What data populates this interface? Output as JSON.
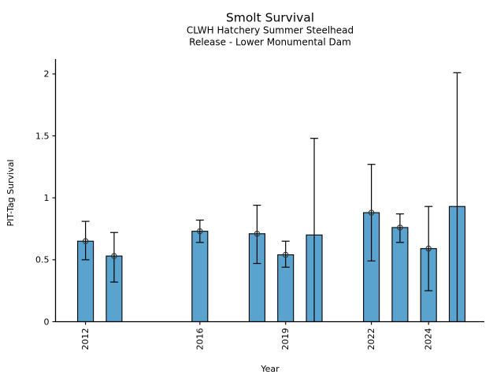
{
  "window": {
    "background": "#ffffff"
  },
  "chart_data": {
    "type": "bar",
    "title": "Smolt Survival",
    "subtitle1": "CLWH Hatchery Summer Steelhead",
    "subtitle2": "Release - Lower Monumental Dam",
    "xlabel": "Year",
    "ylabel": "PIT-Tag Survival",
    "ylim": [
      0,
      2.12
    ],
    "xlim": [
      2010.95,
      2025.95
    ],
    "yticks": [
      0,
      0.5,
      1,
      1.5,
      2
    ],
    "ytick_labels": [
      "0",
      "0.5",
      "1",
      "1.5",
      "2"
    ],
    "xticks": [
      2012,
      2016,
      2019,
      2022,
      2024
    ],
    "xtick_labels": [
      "2012",
      "2016",
      "2019",
      "2022",
      "2024"
    ],
    "grid": false,
    "legend": "none",
    "bar_color": "#5BA3CF",
    "bar_edge_color": "#000000",
    "error_color": "#000000",
    "marker_color": "#333333",
    "bars": [
      {
        "year": 2012,
        "survival": 0.65,
        "ci_lower": 0.5,
        "ci_upper": 0.81,
        "marker": true
      },
      {
        "year": 2013,
        "survival": 0.53,
        "ci_lower": 0.32,
        "ci_upper": 0.72,
        "marker": true
      },
      {
        "year": 2016,
        "survival": 0.73,
        "ci_lower": 0.64,
        "ci_upper": 0.82,
        "marker": true
      },
      {
        "year": 2018,
        "survival": 0.71,
        "ci_lower": 0.47,
        "ci_upper": 0.94,
        "marker": true
      },
      {
        "year": 2019,
        "survival": 0.54,
        "ci_lower": 0.44,
        "ci_upper": 0.65,
        "marker": true
      },
      {
        "year": 2020,
        "survival": 0.7,
        "ci_lower": 0.0,
        "ci_upper": 1.48,
        "marker": false
      },
      {
        "year": 2022,
        "survival": 0.88,
        "ci_lower": 0.49,
        "ci_upper": 1.27,
        "marker": true
      },
      {
        "year": 2023,
        "survival": 0.76,
        "ci_lower": 0.64,
        "ci_upper": 0.87,
        "marker": true
      },
      {
        "year": 2024,
        "survival": 0.59,
        "ci_lower": 0.25,
        "ci_upper": 0.93,
        "marker": true
      },
      {
        "year": 2025,
        "survival": 0.93,
        "ci_lower": 0.0,
        "ci_upper": 2.01,
        "marker": false
      }
    ]
  }
}
